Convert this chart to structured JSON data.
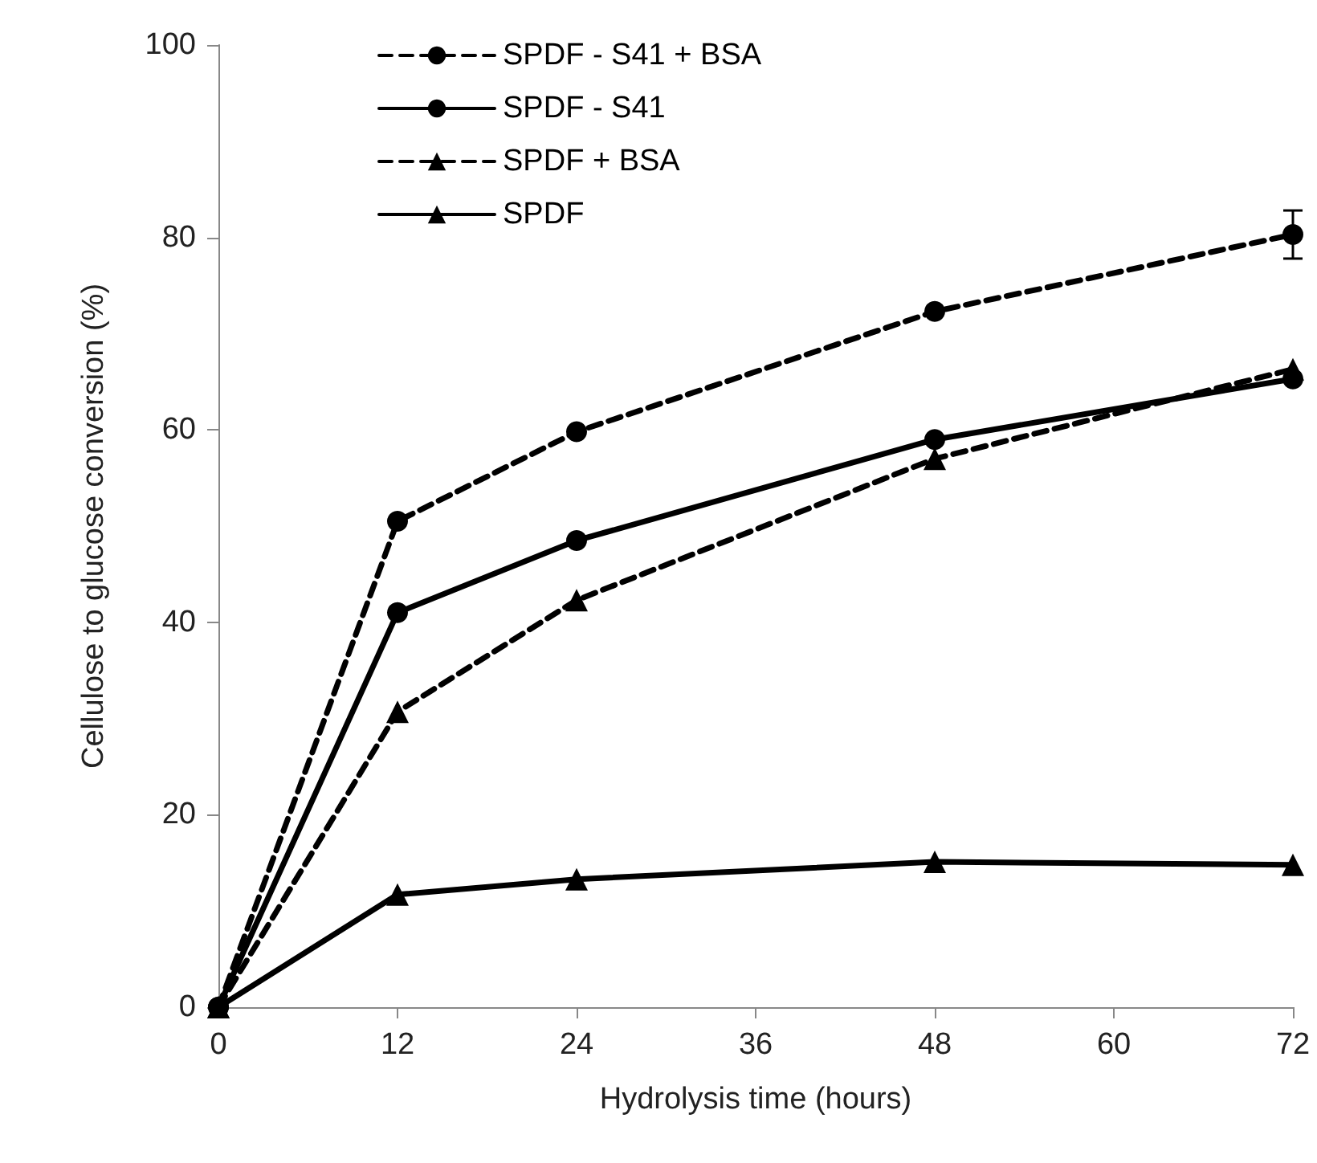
{
  "chart_data": {
    "type": "line",
    "xlabel": "Hydrolysis time (hours)",
    "ylabel": "Cellulose to glucose conversion (%)",
    "x": [
      0,
      12,
      24,
      48,
      72
    ],
    "series": [
      {
        "name": "SPDF - S41 + BSA",
        "color": "#000000",
        "marker": "circle",
        "line_style": "dashed",
        "values": [
          0,
          50.5,
          59.8,
          72.3,
          80.3
        ],
        "errors": [
          null,
          null,
          null,
          null,
          2.5
        ]
      },
      {
        "name": "SPDF - S41",
        "color": "#000000",
        "marker": "circle",
        "line_style": "solid",
        "values": [
          0,
          41,
          48.5,
          59,
          65.3
        ]
      },
      {
        "name": "SPDF + BSA",
        "color": "#000000",
        "marker": "triangle",
        "line_style": "dashed",
        "values": [
          0,
          30.7,
          42.3,
          57,
          66.3
        ]
      },
      {
        "name": "SPDF",
        "color": "#000000",
        "marker": "triangle",
        "line_style": "solid",
        "values": [
          0,
          11.7,
          13.3,
          15.1,
          14.8
        ]
      }
    ],
    "xlim": [
      0,
      72
    ],
    "xticks": [
      0,
      12,
      24,
      36,
      48,
      60,
      72
    ],
    "ylim": [
      0,
      100
    ],
    "yticks": [
      0,
      20,
      40,
      60,
      80,
      100
    ],
    "grid": false,
    "legend": "top left"
  }
}
